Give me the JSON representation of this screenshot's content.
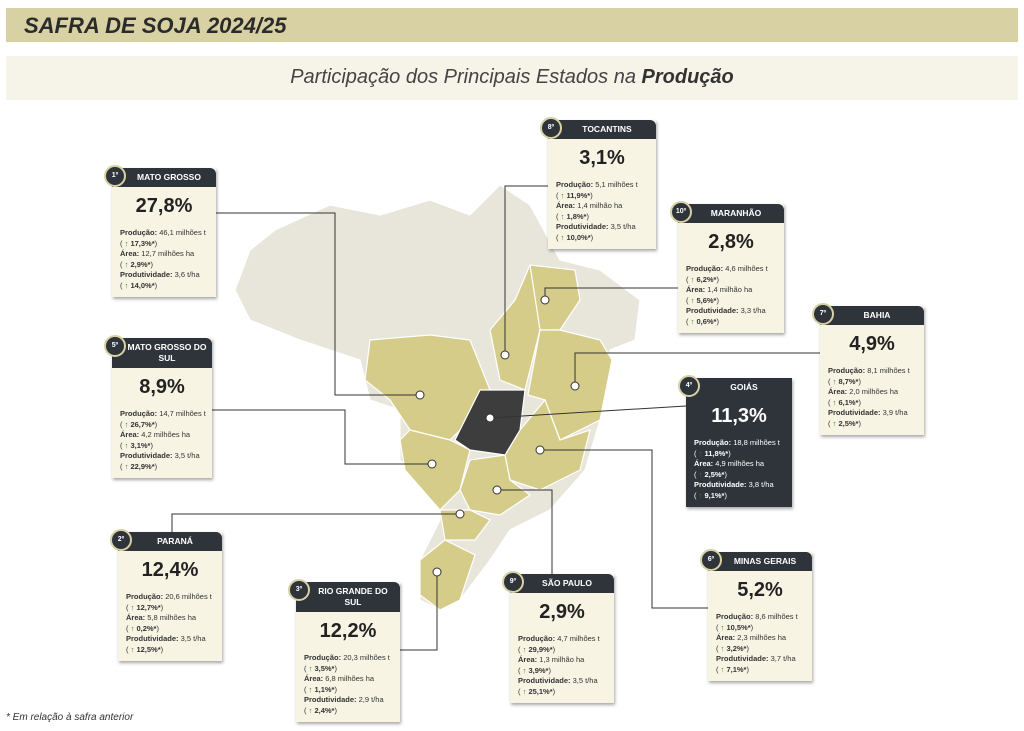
{
  "header": {
    "title": "SAFRA DE SOJA 2024/25"
  },
  "subtitle": {
    "text": "Participação dos Principais Estados na ",
    "emphasis": "Produção"
  },
  "labels": {
    "production": "Produção:",
    "area": "Área:",
    "productivity": "Produtividade:"
  },
  "states": [
    {
      "rank": "1º",
      "name": "MATO GROSSO",
      "share": "27,8%",
      "production": "46,1 milhões t",
      "production_change": "17,3%*",
      "area": "12,7 milhões ha",
      "area_change": "2,9%*",
      "productivity": "3,6 t/ha",
      "productivity_change": "14,0%*"
    },
    {
      "rank": "2º",
      "name": "PARANÁ",
      "share": "12,4%",
      "production": "20,6 milhões t",
      "production_change": "12,7%*",
      "area": "5,8 milhões ha",
      "area_change": "0,2%*",
      "productivity": "3,5 t/ha",
      "productivity_change": "12,5%*"
    },
    {
      "rank": "3º",
      "name": "RIO GRANDE DO SUL",
      "share": "12,2%",
      "production": "20,3 milhões t",
      "production_change": "3,5%*",
      "area": "6,8 milhões ha",
      "area_change": "1,1%*",
      "productivity": "2,9 t/ha",
      "productivity_change": "2,4%*"
    },
    {
      "rank": "4º",
      "name": "GOIÁS",
      "share": "11,3%",
      "production": "18,8 milhões t",
      "production_change": "11,8%*",
      "area": "4,9 milhões ha",
      "area_change": "2,5%*",
      "productivity": "3,8 t/ha",
      "productivity_change": "9,1%*"
    },
    {
      "rank": "5º",
      "name": "MATO GROSSO DO SUL",
      "share": "8,9%",
      "production": "14,7 milhões t",
      "production_change": "26,7%*",
      "area": "4,2 milhões ha",
      "area_change": "3,1%*",
      "productivity": "3,5 t/ha",
      "productivity_change": "22,9%*"
    },
    {
      "rank": "6º",
      "name": "MINAS GERAIS",
      "share": "5,2%",
      "production": "8,6 milhões t",
      "production_change": "10,5%*",
      "area": "2,3 milhões ha",
      "area_change": "3,2%*",
      "productivity": "3,7 t/ha",
      "productivity_change": "7,1%*"
    },
    {
      "rank": "7º",
      "name": "BAHIA",
      "share": "4,9%",
      "production": "8,1 milhões t",
      "production_change": "8,7%*",
      "area": "2,0 milhões ha",
      "area_change": "6,1%*",
      "productivity": "3,9 t/ha",
      "productivity_change": "2,5%*"
    },
    {
      "rank": "8º",
      "name": "TOCANTINS",
      "share": "3,1%",
      "production": "5,1 milhões t",
      "production_change": "11,9%*",
      "area": "1,4 milhão ha",
      "area_change": "1,8%*",
      "productivity": "3,5 t/ha",
      "productivity_change": "10,0%*"
    },
    {
      "rank": "9º",
      "name": "SÃO PAULO",
      "share": "2,9%",
      "production": "4,7 milhões t",
      "production_change": "29,9%*",
      "area": "1,3 milhão ha",
      "area_change": "3,9%*",
      "productivity": "3,5 t/ha",
      "productivity_change": "25,1%*"
    },
    {
      "rank": "10º",
      "name": "MARANHÃO",
      "share": "2,8%",
      "production": "4,6 milhões t",
      "production_change": "6,2%*",
      "area": "1,4 milhão ha",
      "area_change": "5,6%*",
      "productivity": "3,3 t/ha",
      "productivity_change": "0,6%*"
    }
  ],
  "footnote": "* Em relação à safra anterior"
}
